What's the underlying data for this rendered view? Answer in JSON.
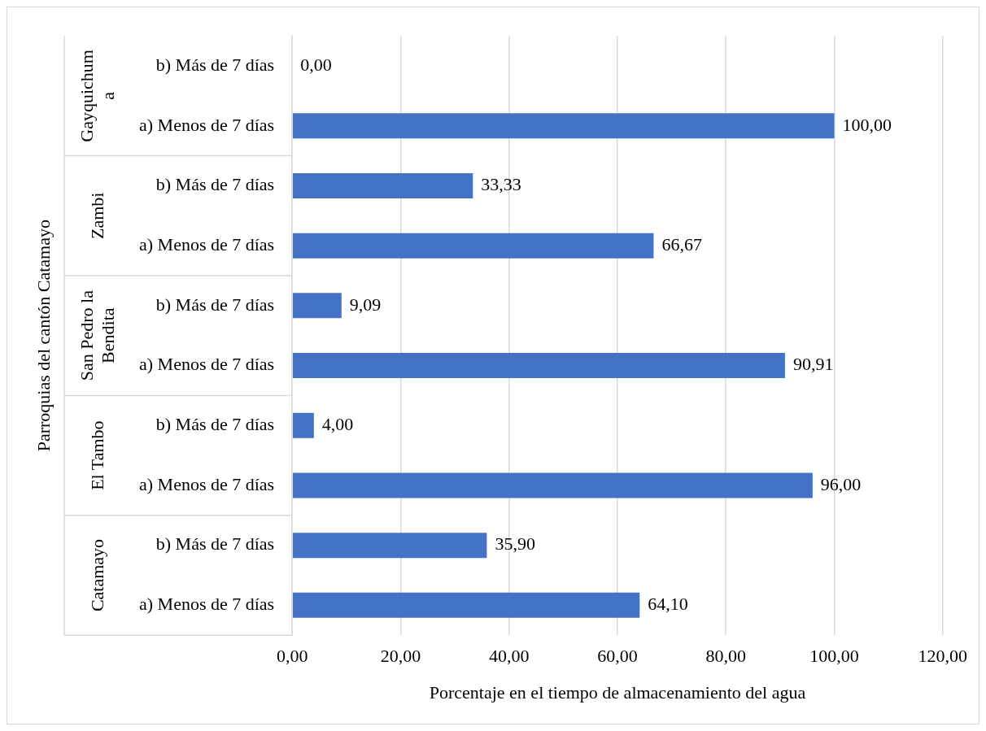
{
  "chart_data": {
    "type": "bar",
    "orientation": "horizontal",
    "ylabel": "Parroquias del cantón Catamayo",
    "xlabel": "Porcentaje en el tiempo de almacenamiento del agua",
    "categories": [
      "b) Más de 7 días",
      "a) Menos de 7 días",
      "b) Más de 7 días",
      "a) Menos de 7 días",
      "b) Más de 7 días",
      "a) Menos de 7 días",
      "b) Más de 7 días",
      "a) Menos de 7 días",
      "b) Más de 7 días",
      "a) Menos de 7 días"
    ],
    "values": [
      0,
      100,
      33.33,
      66.67,
      9.09,
      90.91,
      4,
      96,
      35.9,
      64.1
    ],
    "value_labels": [
      "0,00",
      "100,00",
      "33,33",
      "66,67",
      "9,09",
      "90,91",
      "4,00",
      "96,00",
      "35,90",
      "64,10"
    ],
    "color": "#4472c4",
    "annotations": [
      "Gayquichuma",
      "Zambi",
      "San Pedro la Bendita",
      "El Tambo",
      "Catamayo"
    ],
    "xlim": [
      0,
      120
    ],
    "xticks": [
      {
        "value": 0,
        "label": "0,00"
      },
      {
        "value": 20,
        "label": "20,00"
      },
      {
        "value": 40,
        "label": "40,00"
      },
      {
        "value": 60,
        "label": "60,00"
      },
      {
        "value": 80,
        "label": "80,00"
      },
      {
        "value": 100,
        "label": "100,00"
      },
      {
        "value": 120,
        "label": "120,00"
      }
    ],
    "grid": "x",
    "legend": false
  }
}
